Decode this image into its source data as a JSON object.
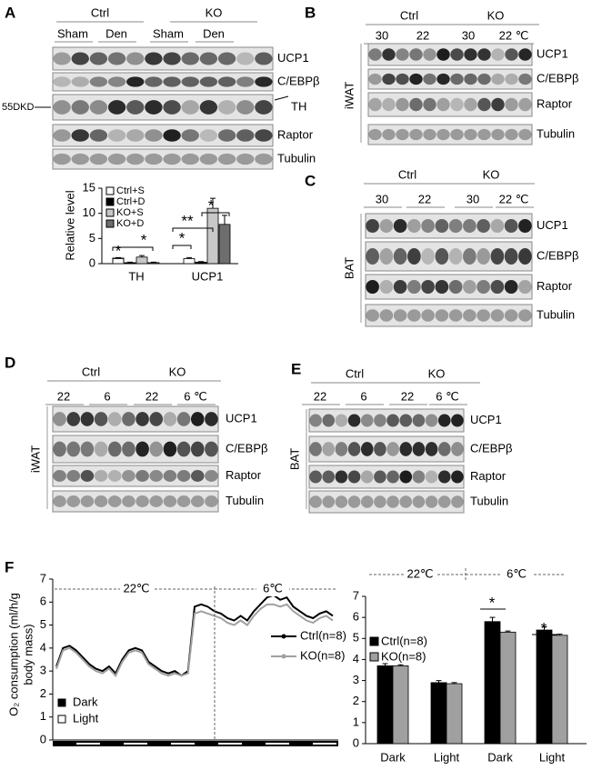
{
  "panels": {
    "A": {
      "label": "A",
      "groups": [
        "Ctrl",
        "KO"
      ],
      "lanes": [
        "Sham",
        "Den",
        "Sham",
        "Den"
      ],
      "rows": [
        "UCP1",
        "C/EBPβ",
        "TH",
        "Raptor",
        "Tubulin"
      ],
      "marker": "55DKD"
    },
    "B": {
      "label": "B",
      "groups": [
        "Ctrl",
        "KO"
      ],
      "lanes": [
        "30",
        "22",
        "30",
        "22 ℃"
      ],
      "tissue": "iWAT",
      "rows": [
        "UCP1",
        "C/EBPβ",
        "Raptor",
        "Tubulin"
      ]
    },
    "C": {
      "label": "C",
      "groups": [
        "Ctrl",
        "KO"
      ],
      "lanes": [
        "30",
        "22",
        "30",
        "22 ℃"
      ],
      "tissue": "BAT",
      "rows": [
        "UCP1",
        "C/EBPβ",
        "Raptor",
        "Tubulin"
      ]
    },
    "D": {
      "label": "D",
      "groups": [
        "Ctrl",
        "KO"
      ],
      "lanes": [
        "22",
        "6",
        "22",
        "6 ℃"
      ],
      "tissue": "iWAT",
      "rows": [
        "UCP1",
        "C/EBPβ",
        "Raptor",
        "Tubulin"
      ]
    },
    "E": {
      "label": "E",
      "groups": [
        "Ctrl",
        "KO"
      ],
      "lanes": [
        "22",
        "6",
        "22",
        "6 ℃"
      ],
      "tissue": "BAT",
      "rows": [
        "UCP1",
        "C/EBPβ",
        "Raptor",
        "Tubulin"
      ]
    },
    "F": {
      "label": "F"
    }
  },
  "chart_data": [
    {
      "type": "bar",
      "ylabel": "Relative level",
      "categories": [
        "TH",
        "UCP1"
      ],
      "series": [
        {
          "name": "Ctrl+S",
          "color": "#ffffff",
          "values": [
            1,
            1
          ],
          "errors": [
            0.2,
            0.2
          ]
        },
        {
          "name": "Ctrl+D",
          "color": "#000000",
          "values": [
            0.2,
            0.3
          ],
          "errors": [
            0.1,
            0.1
          ]
        },
        {
          "name": "KO+S",
          "color": "#c8c8c8",
          "values": [
            1.3,
            11
          ],
          "errors": [
            0.3,
            2
          ]
        },
        {
          "name": "KO+D",
          "color": "#6e6e6e",
          "values": [
            0.2,
            7.8
          ],
          "errors": [
            0.1,
            1.8
          ]
        }
      ],
      "ylim": [
        0,
        15
      ],
      "yticks": [
        0,
        5,
        10,
        15
      ],
      "annotations": [
        "*",
        "*",
        "*",
        "**",
        "*"
      ]
    },
    {
      "type": "line",
      "ylabel_lines": [
        "O₂ consumption (ml/h/g",
        "body mass)"
      ],
      "periods": [
        "22℃",
        "6℃"
      ],
      "legend_marks": [
        "Dark",
        "Light"
      ],
      "series": [
        {
          "name": "Ctrl(n=8)",
          "color": "#000000",
          "values": [
            3.2,
            4.0,
            4.1,
            3.9,
            3.6,
            3.3,
            3.1,
            3.0,
            3.2,
            2.9,
            3.5,
            3.9,
            4.0,
            3.9,
            3.4,
            3.2,
            3.0,
            2.9,
            3.0,
            2.8,
            3.0,
            5.8,
            5.9,
            5.8,
            5.6,
            5.5,
            5.3,
            5.2,
            5.4,
            5.2,
            5.6,
            5.9,
            6.2,
            6.3,
            6.1,
            6.2,
            5.8,
            5.6,
            5.4,
            5.3,
            5.5,
            5.6,
            5.4
          ]
        },
        {
          "name": "KO(n=8)",
          "color": "#a0a0a0",
          "values": [
            3.1,
            3.9,
            4.0,
            3.8,
            3.5,
            3.2,
            3.0,
            2.9,
            3.1,
            2.8,
            3.4,
            3.8,
            3.9,
            3.8,
            3.3,
            3.1,
            2.9,
            2.8,
            2.9,
            2.8,
            2.9,
            5.5,
            5.6,
            5.5,
            5.4,
            5.3,
            5.1,
            5.0,
            5.2,
            5.0,
            5.4,
            5.7,
            5.9,
            5.9,
            5.8,
            5.9,
            5.6,
            5.4,
            5.2,
            5.1,
            5.3,
            5.4,
            5.2
          ]
        }
      ],
      "ylim": [
        0,
        7
      ],
      "yticks": [
        0,
        1,
        2,
        3,
        4,
        5,
        6,
        7
      ]
    },
    {
      "type": "bar",
      "categories": [
        "Dark",
        "Light",
        "Dark",
        "Light"
      ],
      "periods": [
        "22℃",
        "6℃"
      ],
      "annotations": [
        "*",
        "*"
      ],
      "series": [
        {
          "name": "Ctrl(n=8)",
          "color": "#000000",
          "values": [
            3.7,
            2.9,
            5.8,
            5.4
          ],
          "errors": [
            0.1,
            0.1,
            0.2,
            0.15
          ]
        },
        {
          "name": "KO(n=8)",
          "color": "#a0a0a0",
          "values": [
            3.7,
            2.85,
            5.3,
            5.15
          ],
          "errors": [
            0.05,
            0.05,
            0.05,
            0.05
          ]
        }
      ],
      "ylim": [
        0,
        7
      ],
      "yticks": [
        0,
        1,
        2,
        3,
        4,
        5,
        6,
        7
      ]
    }
  ]
}
